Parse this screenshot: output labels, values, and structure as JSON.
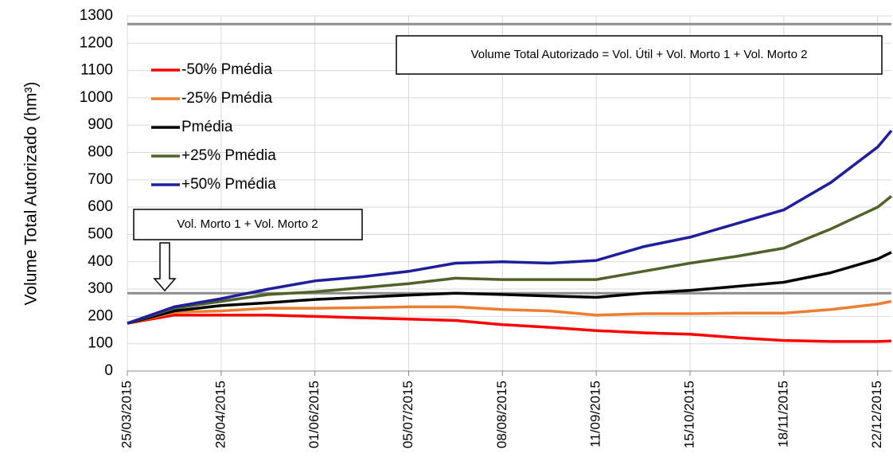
{
  "chart_data": {
    "type": "line",
    "y_label": "Volume Total Autorizado (hm³)",
    "x": [
      "25/03/2015",
      "11/04/2015",
      "28/04/2015",
      "15/05/2015",
      "01/06/2015",
      "18/06/2015",
      "05/07/2015",
      "22/07/2015",
      "08/08/2015",
      "25/08/2015",
      "11/09/2015",
      "28/09/2015",
      "15/10/2015",
      "01/11/2015",
      "18/11/2015",
      "05/12/2015",
      "22/12/2015",
      "27/12/2015"
    ],
    "series": [
      {
        "name": "-50% Pmédia",
        "color": "#ff0000",
        "values": [
          175,
          205,
          205,
          205,
          200,
          195,
          190,
          185,
          170,
          160,
          148,
          140,
          135,
          122,
          112,
          108,
          108,
          110
        ]
      },
      {
        "name": "-25% Pmédia",
        "color": "#ed7d31",
        "values": [
          175,
          215,
          220,
          230,
          230,
          232,
          235,
          235,
          225,
          220,
          205,
          210,
          210,
          212,
          212,
          225,
          245,
          255
        ]
      },
      {
        "name": "Pmédia",
        "color": "#000000",
        "values": [
          175,
          220,
          240,
          250,
          262,
          270,
          278,
          285,
          280,
          275,
          270,
          285,
          295,
          310,
          325,
          360,
          410,
          435
        ]
      },
      {
        "name": "+25% Pmédia",
        "color": "#4f6228",
        "values": [
          175,
          230,
          255,
          280,
          290,
          305,
          320,
          340,
          335,
          335,
          335,
          365,
          395,
          420,
          450,
          520,
          600,
          640
        ]
      },
      {
        "name": "+50% Pmédia",
        "color": "#1f1f9c",
        "values": [
          175,
          235,
          265,
          300,
          330,
          345,
          365,
          395,
          400,
          395,
          405,
          455,
          490,
          540,
          590,
          690,
          820,
          880
        ]
      }
    ],
    "xlim": [
      "25/03/2015",
      "27/12/2015"
    ],
    "xticks": [
      "25/03/2015",
      "28/04/2015",
      "01/06/2015",
      "05/07/2015",
      "08/08/2015",
      "11/09/2015",
      "15/10/2015",
      "18/11/2015",
      "22/12/2015"
    ],
    "ylim": [
      0,
      1300
    ],
    "yticks": [
      0,
      100,
      200,
      300,
      400,
      500,
      600,
      700,
      800,
      900,
      1000,
      1100,
      1200,
      1300
    ],
    "grid": true,
    "reference_lines": [
      1270,
      285
    ],
    "annotations": [
      "Volume Total Autorizado = Vol. Útil + Vol. Morto 1 + Vol. Morto 2",
      "Vol. Morto 1 + Vol. Morto 2"
    ]
  }
}
